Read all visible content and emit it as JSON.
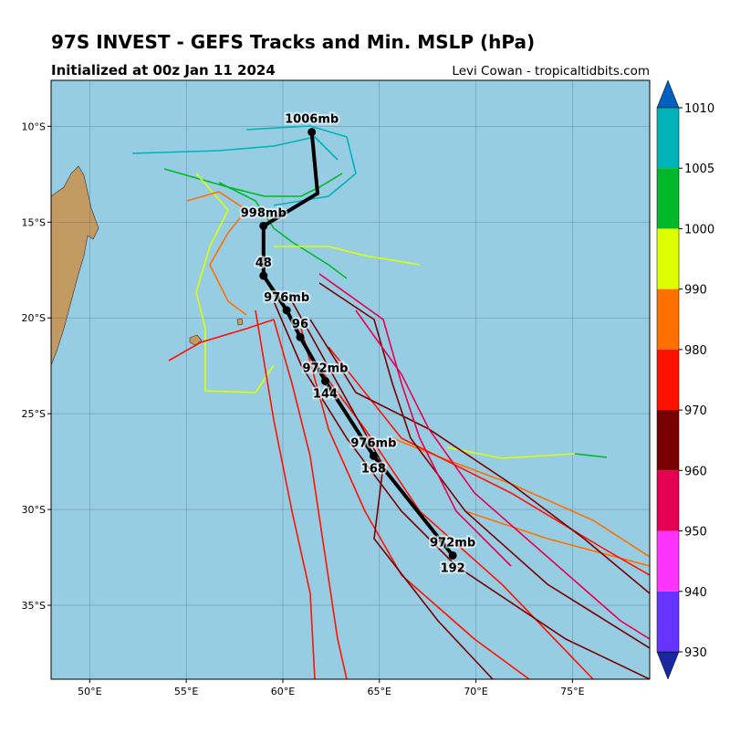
{
  "title": "97S INVEST - GEFS Tracks and Min. MSLP (hPa)",
  "subtitle": "Initialized at 00z Jan 11 2024",
  "credit": "Levi Cowan - tropicaltidbits.com",
  "map": {
    "xlim": [
      48,
      79
    ],
    "ylim": [
      -38.86,
      -7.6
    ],
    "xticks": [
      {
        "value": 50,
        "label": "50°E"
      },
      {
        "value": 55,
        "label": "55°E"
      },
      {
        "value": 60,
        "label": "60°E"
      },
      {
        "value": 65,
        "label": "65°E"
      },
      {
        "value": 70,
        "label": "70°E"
      },
      {
        "value": 75,
        "label": "75°E"
      }
    ],
    "yticks": [
      {
        "value": -10,
        "label": "10°S"
      },
      {
        "value": -15,
        "label": "15°S"
      },
      {
        "value": -20,
        "label": "20°S"
      },
      {
        "value": -25,
        "label": "25°S"
      },
      {
        "value": -30,
        "label": "30°S"
      },
      {
        "value": -35,
        "label": "35°S"
      }
    ],
    "grid": true
  },
  "mean_track": [
    {
      "lon": 61.5,
      "lat": -10.3,
      "label": "1006mb"
    },
    {
      "lon": 61.8,
      "lat": -13.5,
      "label": null
    },
    {
      "lon": 59.0,
      "lat": -15.2,
      "label": "998mb"
    },
    {
      "lon": 59.0,
      "lat": -17.8,
      "label": "48"
    },
    {
      "lon": 60.2,
      "lat": -19.6,
      "label": "976mb"
    },
    {
      "lon": 60.9,
      "lat": -21.0,
      "label": "96"
    },
    {
      "lon": 62.2,
      "lat": -23.3,
      "label": "972mb"
    },
    {
      "lon": 62.2,
      "lat": -23.3,
      "label": "144"
    },
    {
      "lon": 64.7,
      "lat": -27.2,
      "label": "976mb"
    },
    {
      "lon": 64.7,
      "lat": -27.2,
      "label": "168"
    },
    {
      "lon": 68.8,
      "lat": -32.4,
      "label": "972mb"
    },
    {
      "lon": 68.8,
      "lat": -32.4,
      "label": "192"
    }
  ],
  "colorbar": {
    "ticks": [
      1010,
      1005,
      1000,
      990,
      980,
      970,
      960,
      950,
      940,
      930
    ],
    "colors": [
      "#00b3b8",
      "#00b82a",
      "#ddff00",
      "#ff7000",
      "#ff1100",
      "#780000",
      "#e60050",
      "#ff33ff",
      "#6633ff"
    ],
    "over": "#0060c0",
    "under": "#1a28a0"
  }
}
